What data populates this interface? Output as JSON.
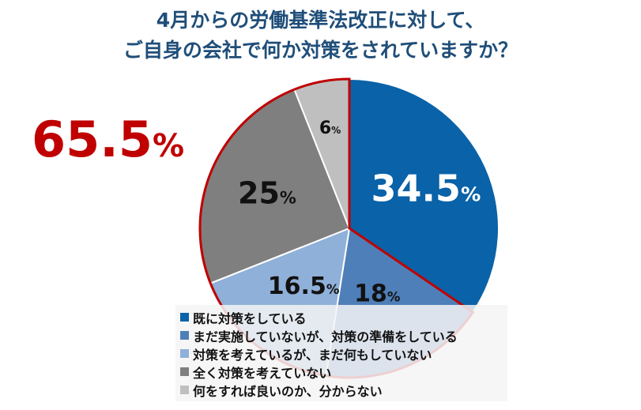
{
  "title_lines": [
    "4月からの労働基準法改正に対して、",
    "ご自身の会社で何か対策をされていますか？"
  ],
  "highlight": {
    "value": "65.5",
    "unit": "%",
    "color": "#c00000"
  },
  "chart_data": {
    "type": "pie",
    "title": "4月からの労働基準法改正に対して、ご自身の会社で何か対策をされていますか？",
    "categories": [
      "既に対策をしている",
      "まだ実施していないが、対策の準備をしている",
      "対策を考えているが、まだ何もしていない",
      "全く対策を考えていない",
      "何をすれば良いのか、分からない"
    ],
    "values": [
      34.5,
      18,
      16.5,
      25,
      6
    ],
    "labels": [
      "34.5",
      "18",
      "16.5",
      "25",
      "6"
    ],
    "unit": "%",
    "colors": [
      "#0a62a8",
      "#4f7fb8",
      "#8fb0d8",
      "#7f7f7f",
      "#bfbfbf"
    ],
    "label_colors": [
      "#ffffff",
      "#111111",
      "#111111",
      "#111111",
      "#111111"
    ],
    "highlight_outline": {
      "categories": [
        1,
        2,
        3,
        4
      ],
      "total": 65.5,
      "color": "#c00000"
    },
    "legend_position": "bottom"
  }
}
